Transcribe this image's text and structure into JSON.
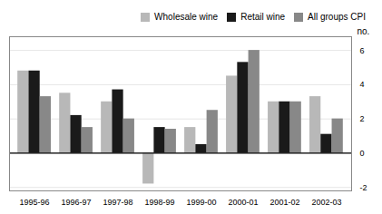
{
  "chart_data": {
    "type": "bar",
    "categories": [
      "1995-96",
      "1996-97",
      "1997-98",
      "1998-99",
      "1999-00",
      "2000-01",
      "2001-02",
      "2002-03"
    ],
    "series": [
      {
        "name": "Wholesale wine",
        "color": "#b8b8b8",
        "values": [
          4.8,
          3.5,
          3.0,
          -1.8,
          1.5,
          4.5,
          3.0,
          3.3
        ]
      },
      {
        "name": "Retail wine",
        "color": "#1a1a1a",
        "values": [
          4.8,
          2.2,
          3.7,
          1.5,
          0.5,
          5.3,
          3.0,
          1.1
        ]
      },
      {
        "name": "All groups CPI",
        "color": "#888888",
        "values": [
          3.3,
          1.5,
          2.0,
          1.4,
          2.5,
          6.0,
          3.0,
          2.0
        ]
      }
    ],
    "ylabel": "no.",
    "ylim": [
      -2.2,
      6.8
    ],
    "yticks": [
      -2,
      0,
      2,
      4,
      6
    ],
    "grid": true,
    "legend": "upper right"
  }
}
